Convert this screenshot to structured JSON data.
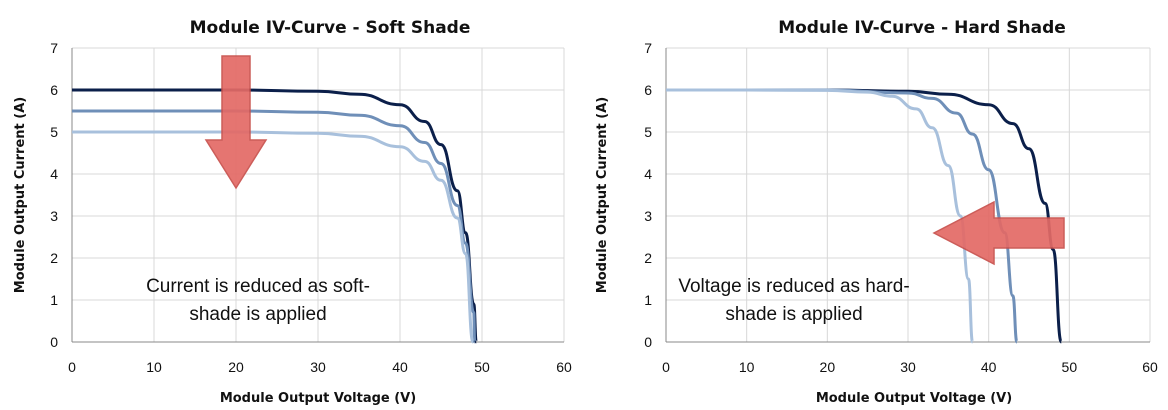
{
  "chart_data": [
    {
      "type": "line",
      "title": "Module IV-Curve - Soft Shade",
      "xlabel": "Module Output Voltage (V)",
      "ylabel": "Module Output Current (A)",
      "xlim": [
        0,
        60
      ],
      "ylim": [
        0,
        7
      ],
      "x_ticks": [
        "0",
        "10",
        "20",
        "30",
        "40",
        "50",
        "60"
      ],
      "y_ticks": [
        "0",
        "1",
        "2",
        "3",
        "4",
        "5",
        "6",
        "7"
      ],
      "grid": true,
      "annotation_lines": [
        "Current is reduced as soft-",
        "shade is applied"
      ],
      "arrow_direction": "down",
      "series": [
        {
          "color": "#0b1f4a",
          "isc": 6.0,
          "voc": 49.3,
          "x": [
            0,
            10,
            20,
            30,
            35,
            40,
            43,
            45,
            47,
            48,
            49,
            49.3
          ],
          "y": [
            6.0,
            6.0,
            6.0,
            5.97,
            5.9,
            5.65,
            5.25,
            4.7,
            3.6,
            2.6,
            0.9,
            0
          ]
        },
        {
          "color": "#6f8fb8",
          "isc": 5.5,
          "voc": 49.1,
          "x": [
            0,
            10,
            20,
            30,
            35,
            40,
            43,
            45,
            47,
            48,
            49,
            49.1
          ],
          "y": [
            5.5,
            5.5,
            5.5,
            5.47,
            5.4,
            5.15,
            4.75,
            4.25,
            3.25,
            2.35,
            0.7,
            0
          ]
        },
        {
          "color": "#a8c0dc",
          "isc": 5.0,
          "voc": 48.9,
          "x": [
            0,
            10,
            20,
            30,
            35,
            40,
            43,
            45,
            47,
            48,
            48.9
          ],
          "y": [
            5.0,
            5.0,
            5.0,
            4.97,
            4.9,
            4.65,
            4.3,
            3.85,
            2.95,
            2.1,
            0
          ]
        }
      ]
    },
    {
      "type": "line",
      "title": "Module IV-Curve - Hard Shade",
      "xlabel": "Module Output Voltage (V)",
      "ylabel": "Module Output Current (A)",
      "xlim": [
        0,
        60
      ],
      "ylim": [
        0,
        7
      ],
      "x_ticks": [
        "0",
        "10",
        "20",
        "30",
        "40",
        "50",
        "60"
      ],
      "y_ticks": [
        "0",
        "1",
        "2",
        "3",
        "4",
        "5",
        "6",
        "7"
      ],
      "grid": true,
      "annotation_lines": [
        "Voltage is reduced as hard-",
        "shade is applied"
      ],
      "arrow_direction": "left",
      "series": [
        {
          "color": "#0b1f4a",
          "isc": 6.0,
          "voc": 49.0,
          "x": [
            0,
            10,
            20,
            30,
            35,
            40,
            43,
            45,
            47,
            48,
            49
          ],
          "y": [
            6.0,
            6.0,
            6.0,
            5.97,
            5.9,
            5.65,
            5.2,
            4.6,
            3.3,
            2.2,
            0
          ]
        },
        {
          "color": "#6f8fb8",
          "isc": 6.0,
          "voc": 43.5,
          "x": [
            0,
            10,
            20,
            30,
            33,
            36,
            38,
            40,
            42,
            43,
            43.5
          ],
          "y": [
            6.0,
            6.0,
            6.0,
            5.93,
            5.8,
            5.45,
            4.95,
            4.1,
            2.6,
            1.1,
            0
          ]
        },
        {
          "color": "#a8c0dc",
          "isc": 6.0,
          "voc": 38.0,
          "x": [
            0,
            10,
            20,
            25,
            28,
            31,
            33,
            35,
            36.5,
            37.5,
            38
          ],
          "y": [
            6.0,
            6.0,
            5.99,
            5.95,
            5.85,
            5.55,
            5.1,
            4.2,
            3.0,
            1.5,
            0
          ]
        }
      ]
    }
  ]
}
